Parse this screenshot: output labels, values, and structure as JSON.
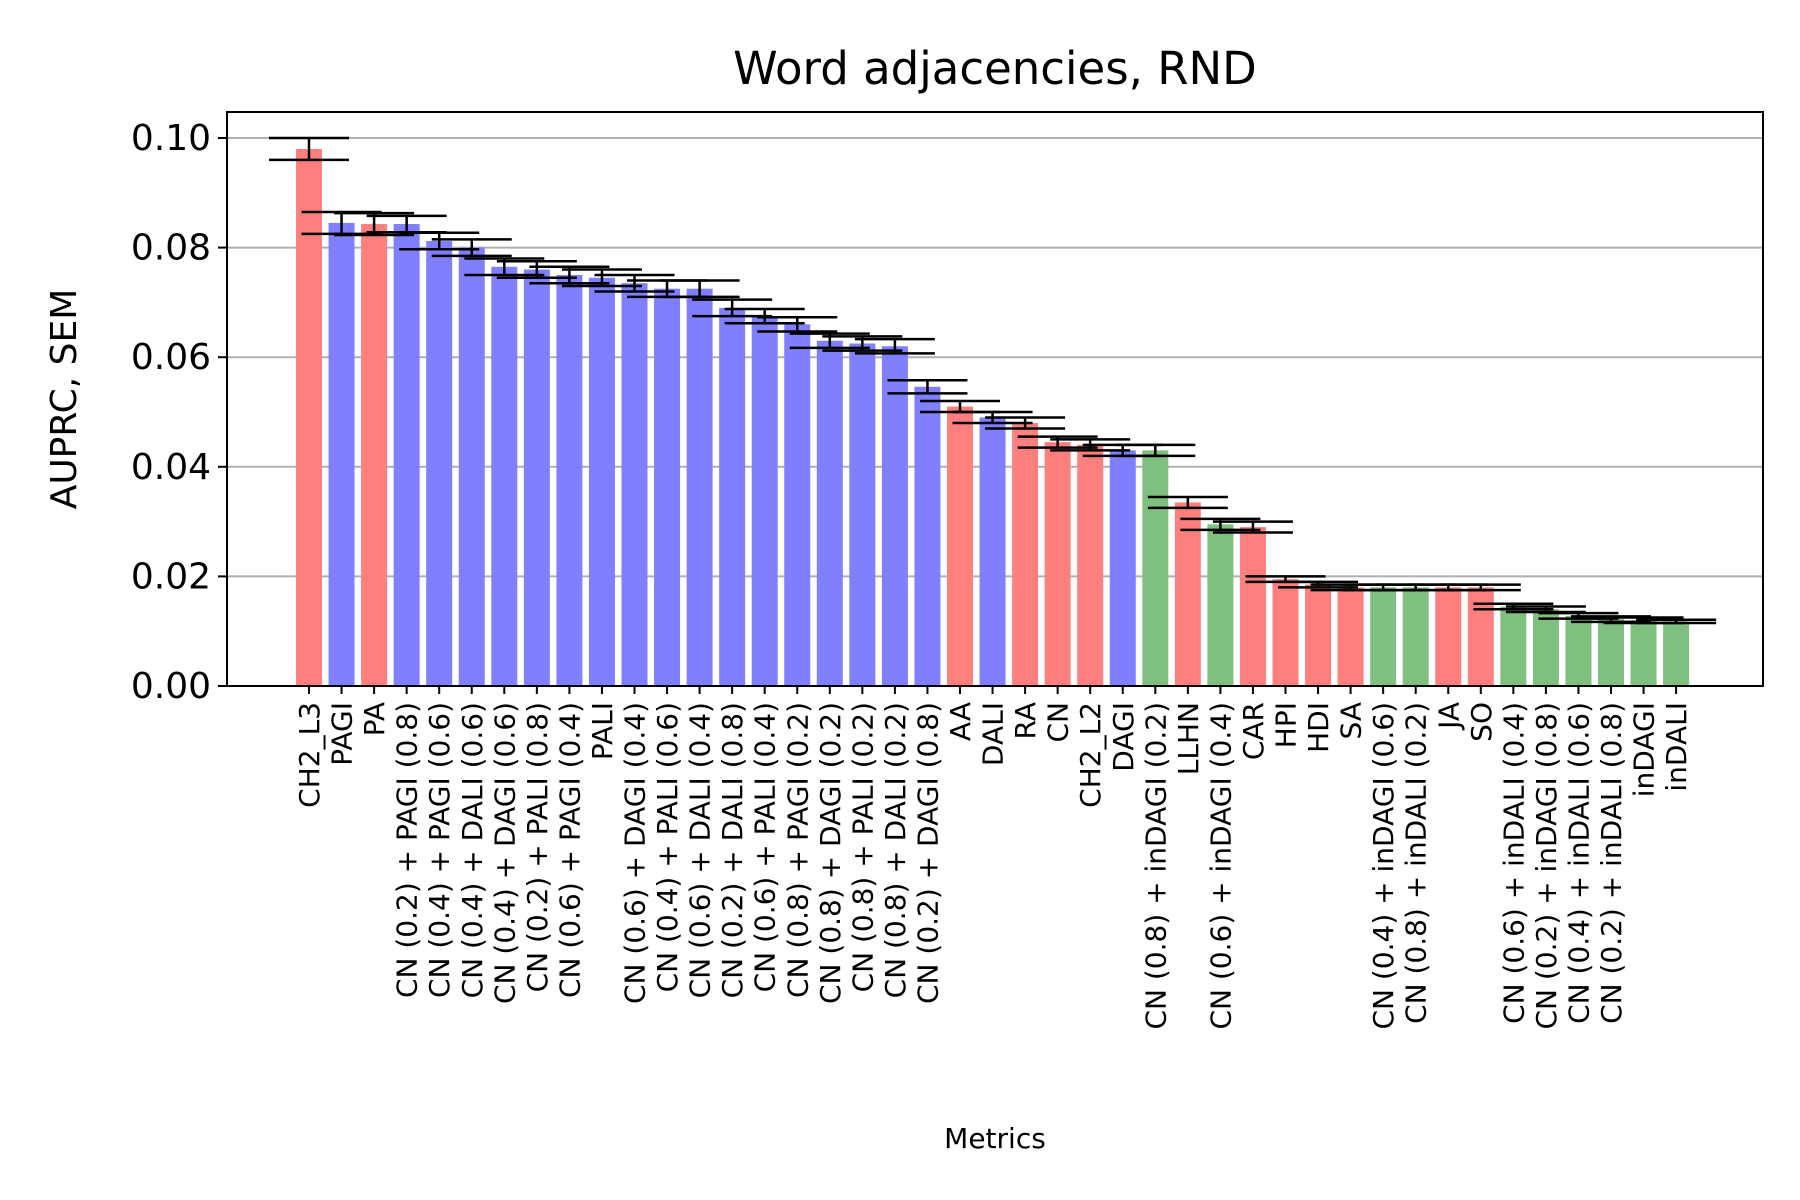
{
  "chart_data": {
    "type": "bar",
    "title": "Word adjacencies, RND",
    "xlabel": "Metrics",
    "ylabel": "AUPRC, SEM",
    "ylim": [
      0,
      0.105
    ],
    "yticks": [
      "0.00",
      "0.02",
      "0.04",
      "0.06",
      "0.08",
      "0.10"
    ],
    "grid": "y",
    "colors": {
      "red": "#ff7f7f",
      "blue": "#7f7fff",
      "green": "#7fbf7f"
    },
    "categories": [
      "CH2_L3",
      "PAGI",
      "PA",
      "CN (0.2) + PAGI (0.8)",
      "CN (0.4) + PAGI (0.6)",
      "CN (0.4) + DALI (0.6)",
      "CN (0.4) + DAGI (0.6)",
      "CN (0.2) + PALI (0.8)",
      "CN (0.6) + PAGI (0.4)",
      "PALI",
      "CN (0.6) + DAGI (0.4)",
      "CN (0.4) + PALI (0.6)",
      "CN (0.6) + DALI (0.4)",
      "CN (0.2) + DALI (0.8)",
      "CN (0.6) + PALI (0.4)",
      "CN (0.8) + PAGI (0.2)",
      "CN (0.8) + DAGI (0.2)",
      "CN (0.8) + PALI (0.2)",
      "CN (0.8) + DALI (0.2)",
      "CN (0.2) + DAGI (0.8)",
      "AA",
      "DALI",
      "RA",
      "CN",
      "CH2_L2",
      "DAGI",
      "CN (0.8) + inDAGI (0.2)",
      "LLHN",
      "CN (0.6) + inDAGI (0.4)",
      "CAR",
      "HPI",
      "HDI",
      "SA",
      "CN (0.4) + inDAGI (0.6)",
      "CN (0.8) + inDALI (0.2)",
      "JA",
      "SO",
      "CN (0.6) + inDALI (0.4)",
      "CN (0.2) + inDAGI (0.8)",
      "CN (0.4) + inDALI (0.6)",
      "CN (0.2) + inDALI (0.8)",
      "inDAGI",
      "inDALI"
    ],
    "values": [
      0.098,
      0.0845,
      0.0843,
      0.0843,
      0.0812,
      0.08,
      0.0765,
      0.076,
      0.075,
      0.0745,
      0.0735,
      0.0725,
      0.0725,
      0.069,
      0.0675,
      0.066,
      0.063,
      0.0625,
      0.062,
      0.0546,
      0.051,
      0.049,
      0.048,
      0.0445,
      0.044,
      0.043,
      0.043,
      0.0335,
      0.0295,
      0.029,
      0.0195,
      0.0185,
      0.018,
      0.018,
      0.018,
      0.018,
      0.018,
      0.0145,
      0.014,
      0.0128,
      0.0122,
      0.012,
      0.0118
    ],
    "sem": [
      0.002,
      0.002,
      0.002,
      0.0015,
      0.0015,
      0.0015,
      0.0015,
      0.0015,
      0.0015,
      0.0015,
      0.0015,
      0.0015,
      0.0015,
      0.0015,
      0.0013,
      0.0013,
      0.0013,
      0.0013,
      0.0013,
      0.0012,
      0.001,
      0.001,
      0.001,
      0.001,
      0.001,
      0.001,
      0.001,
      0.001,
      0.001,
      0.001,
      0.0005,
      0.0005,
      0.0005,
      0.0005,
      0.0005,
      0.0005,
      0.0005,
      0.0005,
      0.0005,
      0.0005,
      0.0005,
      0.0005,
      0.0003
    ],
    "bar_colors": [
      "red",
      "blue",
      "red",
      "blue",
      "blue",
      "blue",
      "blue",
      "blue",
      "blue",
      "blue",
      "blue",
      "blue",
      "blue",
      "blue",
      "blue",
      "blue",
      "blue",
      "blue",
      "blue",
      "blue",
      "red",
      "blue",
      "red",
      "red",
      "red",
      "blue",
      "green",
      "red",
      "green",
      "red",
      "red",
      "red",
      "red",
      "green",
      "green",
      "red",
      "red",
      "green",
      "green",
      "green",
      "green",
      "green",
      "green"
    ]
  }
}
